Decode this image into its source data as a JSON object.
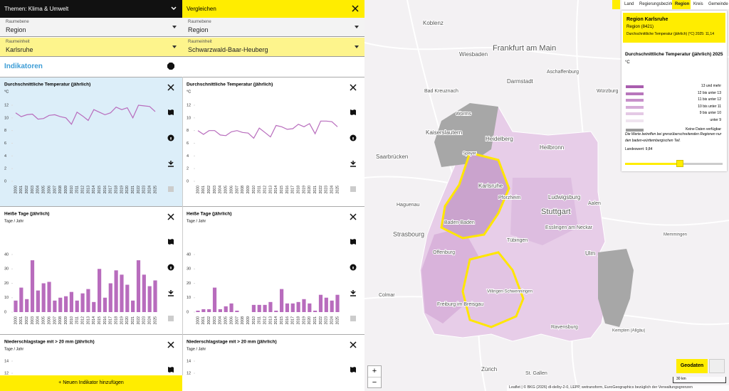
{
  "header": {
    "topic": "Themen: Klima & Umwelt",
    "compare": "Vergleichen"
  },
  "selectors": [
    {
      "label": "Raumebene",
      "left": "Region",
      "right": "Region"
    },
    {
      "label": "Raumeinheit",
      "left": "Karlsruhe",
      "right": "Schwarzwald-Baar-Heuberg"
    }
  ],
  "indicators_heading": "Indikatoren",
  "chart_data": [
    {
      "type": "line",
      "title": "Durchschnittliche Temperatur (jährlich)",
      "y_label": "°C",
      "categories": [
        "2000",
        "2001",
        "2002",
        "2003",
        "2004",
        "2005",
        "2006",
        "2007",
        "2008",
        "2009",
        "2010",
        "2011",
        "2012",
        "2013",
        "2014",
        "2015",
        "2016",
        "2017",
        "2018",
        "2019",
        "2020",
        "2021",
        "2022",
        "2023",
        "2024",
        "2025"
      ],
      "values": [
        10.8,
        10.2,
        10.5,
        10.6,
        9.8,
        9.9,
        10.4,
        10.5,
        10.2,
        10.0,
        9.0,
        10.9,
        10.3,
        9.6,
        11.3,
        10.9,
        10.5,
        10.8,
        11.7,
        11.3,
        11.6,
        10.0,
        12.0,
        11.9,
        11.8,
        11.0
      ],
      "color": "#b86cbd",
      "ylim": [
        0,
        12
      ],
      "yticks": [
        0,
        2,
        4,
        6,
        8,
        10,
        12
      ]
    },
    {
      "type": "line",
      "title": "Durchschnittliche Temperatur (jährlich)",
      "y_label": "°C",
      "categories": [
        "2000",
        "2001",
        "2002",
        "2003",
        "2004",
        "2005",
        "2006",
        "2007",
        "2008",
        "2009",
        "2010",
        "2011",
        "2012",
        "2013",
        "2014",
        "2015",
        "2016",
        "2017",
        "2018",
        "2019",
        "2020",
        "2021",
        "2022",
        "2023",
        "2024",
        "2025"
      ],
      "values": [
        8.0,
        7.4,
        8.0,
        8.0,
        7.3,
        7.2,
        7.8,
        8.0,
        7.7,
        7.6,
        6.8,
        8.4,
        7.7,
        7.0,
        8.8,
        8.6,
        8.2,
        8.3,
        9.0,
        8.6,
        9.1,
        7.5,
        9.5,
        9.5,
        9.4,
        8.6
      ],
      "color": "#b86cbd",
      "ylim": [
        0,
        12
      ],
      "yticks": [
        0,
        2,
        4,
        6,
        8,
        10,
        12
      ]
    },
    {
      "type": "bar",
      "title": "Heiße Tage (jährlich)",
      "y_label": "Tage / Jahr",
      "categories": [
        "2000",
        "2001",
        "2002",
        "2003",
        "2004",
        "2005",
        "2006",
        "2007",
        "2008",
        "2009",
        "2010",
        "2011",
        "2012",
        "2013",
        "2014",
        "2015",
        "2016",
        "2017",
        "2018",
        "2019",
        "2020",
        "2021",
        "2022",
        "2023",
        "2024",
        "2025"
      ],
      "values": [
        8,
        17,
        9,
        36,
        15,
        20,
        21,
        8,
        10,
        11,
        14,
        8,
        13,
        16,
        7,
        30,
        10,
        20,
        29,
        26,
        19,
        8,
        36,
        26,
        18,
        22
      ],
      "color": "#b86cbd",
      "ylim": [
        0,
        40
      ],
      "yticks": [
        0,
        10,
        20,
        30,
        40
      ]
    },
    {
      "type": "bar",
      "title": "Heiße Tage (jährlich)",
      "y_label": "Tage / Jahr",
      "categories": [
        "2000",
        "2001",
        "2002",
        "2003",
        "2004",
        "2005",
        "2006",
        "2007",
        "2008",
        "2009",
        "2010",
        "2011",
        "2012",
        "2013",
        "2014",
        "2015",
        "2016",
        "2017",
        "2018",
        "2019",
        "2020",
        "2021",
        "2022",
        "2023",
        "2024",
        "2025"
      ],
      "values": [
        1,
        2,
        2,
        17,
        2,
        4,
        6,
        1,
        0,
        0,
        5,
        5,
        5,
        7,
        1,
        16,
        6,
        6,
        7,
        9,
        6,
        1,
        12,
        10,
        8,
        12
      ],
      "color": "#b86cbd",
      "ylim": [
        0,
        40
      ],
      "yticks": [
        0,
        10,
        20,
        30,
        40
      ]
    },
    {
      "type": "bar",
      "title": "Niederschlagstage mit > 20 mm (jährlich)",
      "y_label": "Tage / Jahr",
      "color": "#b86cbd",
      "ylim": [
        0,
        14
      ],
      "yticks": [
        12,
        14
      ]
    },
    {
      "type": "bar",
      "title": "Niederschlagstage mit > 20 mm (jährlich)",
      "y_label": "Tage / Jahr",
      "color": "#b86cbd",
      "ylim": [
        0,
        14
      ],
      "yticks": [
        12,
        14
      ]
    }
  ],
  "add_button": "+ Neuen Indikator hinzufügen",
  "map": {
    "levels": [
      "Land",
      "Regierungsbezirk",
      "Region",
      "Kreis",
      "Gemeinde"
    ],
    "info": {
      "name": "Region Karlsruhe",
      "code": "Region (8421)",
      "value_text": "Durchschnittliche Temperatur (jährlich) (°C) 2025: 11,14"
    },
    "legend": {
      "title": "Durchschnittliche Temperatur (jährlich) 2025",
      "unit": "°C",
      "classes": [
        {
          "label": "13 und mehr",
          "color": "#a95dae"
        },
        {
          "label": "12 bis unter 13",
          "color": "#b877bc"
        },
        {
          "label": "11 bis unter 12",
          "color": "#c790ca"
        },
        {
          "label": "10 bis unter 11",
          "color": "#d6acd8"
        },
        {
          "label": "9 bis unter 10",
          "color": "#e4c9e5"
        },
        {
          "label": "unter 9",
          "color": "#f0e4f0"
        },
        {
          "label": "Keine Daten verfügbar",
          "color": "#9b9b9b"
        }
      ],
      "note": "Die Werte betreffen bei grenzüberschreitenden Regionen nur den baden-württembergischen Teil.",
      "state_value": "Landeswert: 9,84"
    },
    "places": [
      "Koblenz",
      "Wiesbaden",
      "Frankfurt am Main",
      "Darmstadt",
      "Aschaffenburg",
      "Würzburg",
      "Bad Kreuznach",
      "Worms",
      "Kaiserslautern",
      "Saarbrücken",
      "Heidelberg",
      "Speyer",
      "Heilbronn",
      "Karlsruhe",
      "Pforzheim",
      "Ludwigsburg",
      "Stuttgart",
      "Aalen",
      "Strasbourg",
      "Baden-Baden",
      "Esslingen am Neckar",
      "Tübingen",
      "Ulm",
      "Offenburg",
      "Colmar",
      "Villingen-Schwenningen",
      "Freiburg im Breisgau",
      "Ravensburg",
      "Kempten (Allgäu)",
      "Zürich",
      "St. Gallen",
      "Haguenau",
      "Memmingen"
    ],
    "geodata": "Geodaten",
    "zoom_in": "+",
    "zoom_out": "−",
    "scale": "30 km",
    "attribution": "Leaflet | © BKG (2026) dl-de/by-2-0, LEPP, wetransform, EuroGeographics bezüglich der Verwaltungsgrenzen"
  }
}
